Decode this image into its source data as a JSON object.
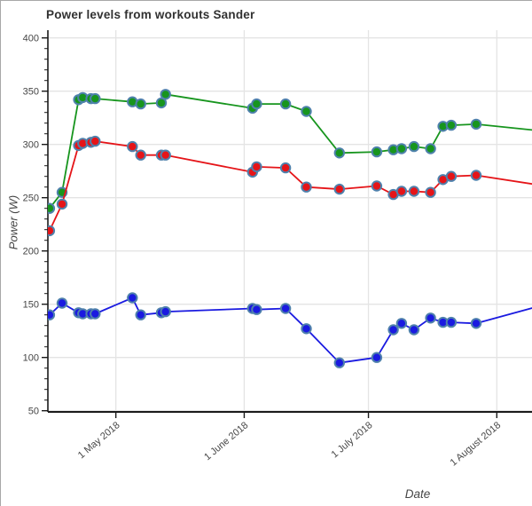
{
  "chart_data": {
    "type": "line",
    "title": "Power levels from workouts Sander",
    "xlabel": "Date",
    "ylabel": "Power (W)",
    "x_tick_labels": [
      "1 May 2018",
      "1 June 2018",
      "1 July 2018",
      "1 August 2018"
    ],
    "x_tick_dates": [
      "2018-05-01",
      "2018-06-01",
      "2018-07-01",
      "2018-08-01"
    ],
    "y_ticks": [
      50,
      100,
      150,
      200,
      250,
      300,
      350,
      400
    ],
    "y_minor_step": 10,
    "x_range": [
      "2018-04-14T14:00:00Z",
      "2018-08-09T12:00:00Z"
    ],
    "y_range": [
      48.9,
      407.25
    ],
    "grid": true,
    "legend": "none",
    "background_color": "#ffffff",
    "grid_color": "#e4e4e4",
    "axis_color": "#1a1a1a",
    "tick_label_color": "#454545",
    "marker_edge_color": "#4f81ac",
    "x": [
      "2018-04-15",
      "2018-04-18",
      "2018-04-22",
      "2018-04-23",
      "2018-04-25",
      "2018-04-26",
      "2018-05-05",
      "2018-05-07",
      "2018-05-12",
      "2018-05-13",
      "2018-06-03",
      "2018-06-04",
      "2018-06-11",
      "2018-06-16",
      "2018-06-24",
      "2018-07-03",
      "2018-07-07",
      "2018-07-09",
      "2018-07-12",
      "2018-07-16",
      "2018-07-19",
      "2018-07-21",
      "2018-07-27",
      "2018-08-11"
    ],
    "series": [
      {
        "name": "green",
        "color": "#17951e",
        "values": [
          240,
          255,
          342,
          344,
          343,
          343,
          340,
          338,
          339,
          347,
          334,
          338,
          338,
          331,
          292,
          293,
          295,
          296,
          298,
          296,
          317,
          318,
          319,
          313
        ]
      },
      {
        "name": "red",
        "color": "#e51418",
        "values": [
          219,
          244,
          299,
          301,
          302,
          303,
          298,
          290,
          290,
          290,
          274,
          279,
          278,
          260,
          258,
          261,
          253,
          256,
          256,
          255,
          267,
          270,
          271,
          262
        ]
      },
      {
        "name": "blue",
        "color": "#1a1ae0",
        "values": [
          140,
          151,
          142,
          141,
          141,
          141,
          156,
          140,
          142,
          143,
          146,
          145,
          146,
          127,
          95,
          100,
          126,
          132,
          126,
          137,
          133,
          133,
          132,
          148
        ]
      }
    ]
  }
}
